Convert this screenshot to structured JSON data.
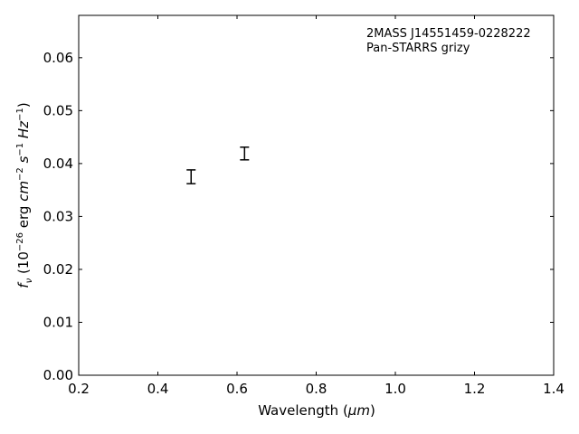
{
  "chart_data": {
    "type": "scatter",
    "xlabel_prefix": "Wavelength (",
    "xlabel_unit": "μm",
    "xlabel_suffix": ")",
    "ylabel": "f_ν (10^−26 erg cm^−2 s^−1 Hz^−1)",
    "xlim": [
      0.2,
      1.4
    ],
    "ylim": [
      0.0,
      0.068
    ],
    "xticks": [
      "0.2",
      "0.4",
      "0.6",
      "0.8",
      "1.0",
      "1.2",
      "1.4"
    ],
    "yticks": [
      "0.00",
      "0.01",
      "0.02",
      "0.03",
      "0.04",
      "0.05",
      "0.06"
    ],
    "annotations": [
      "2MASS J14551459-0228222",
      "Pan-STARRS grizy"
    ],
    "grid": false,
    "points": [
      {
        "x": 0.484,
        "y": 0.0375,
        "yerr": 0.0013
      },
      {
        "x": 0.619,
        "y": 0.0419,
        "yerr": 0.0012
      }
    ],
    "color": "#000000"
  }
}
